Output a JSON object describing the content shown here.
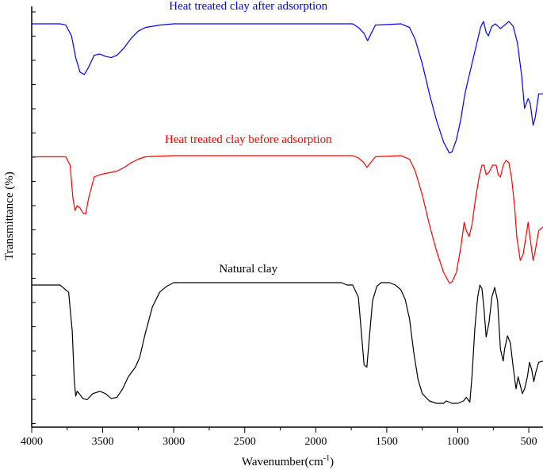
{
  "chart_data": {
    "type": "line",
    "xlabel": "Wavenumber(cm",
    "xlabel_sup": "-1",
    "xlabel_close": ")",
    "ylabel": "Transmittance (%)",
    "xlim": [
      4000,
      400
    ],
    "x_reversed": true,
    "x_ticks": [
      4000,
      3500,
      3000,
      2500,
      2000,
      1500,
      1000,
      500
    ],
    "y_tick_labels": false,
    "grid": false,
    "series": [
      {
        "name": "Heat treated clay after adsorption",
        "color": "#0000ff",
        "points": [
          [
            4000,
            0.02
          ],
          [
            3800,
            0.02
          ],
          [
            3760,
            0.03
          ],
          [
            3720,
            0.12
          ],
          [
            3690,
            0.3
          ],
          [
            3660,
            0.42
          ],
          [
            3630,
            0.44
          ],
          [
            3600,
            0.38
          ],
          [
            3560,
            0.28
          ],
          [
            3520,
            0.27
          ],
          [
            3480,
            0.29
          ],
          [
            3440,
            0.3
          ],
          [
            3400,
            0.28
          ],
          [
            3350,
            0.22
          ],
          [
            3300,
            0.14
          ],
          [
            3250,
            0.08
          ],
          [
            3200,
            0.05
          ],
          [
            3100,
            0.03
          ],
          [
            3000,
            0.02
          ],
          [
            2500,
            0.02
          ],
          [
            2000,
            0.02
          ],
          [
            1740,
            0.02
          ],
          [
            1700,
            0.05
          ],
          [
            1660,
            0.1
          ],
          [
            1635,
            0.16
          ],
          [
            1610,
            0.1
          ],
          [
            1580,
            0.03
          ],
          [
            1400,
            0.02
          ],
          [
            1340,
            0.05
          ],
          [
            1300,
            0.15
          ],
          [
            1250,
            0.35
          ],
          [
            1200,
            0.6
          ],
          [
            1150,
            0.82
          ],
          [
            1100,
            1.0
          ],
          [
            1060,
            1.09
          ],
          [
            1040,
            1.08
          ],
          [
            1010,
            0.98
          ],
          [
            980,
            0.82
          ],
          [
            950,
            0.6
          ],
          [
            930,
            0.5
          ],
          [
            900,
            0.35
          ],
          [
            870,
            0.2
          ],
          [
            840,
            0.05
          ],
          [
            820,
            0.0
          ],
          [
            800,
            0.09
          ],
          [
            785,
            0.12
          ],
          [
            760,
            0.04
          ],
          [
            735,
            0.02
          ],
          [
            700,
            0.06
          ],
          [
            670,
            0.03
          ],
          [
            640,
            0.0
          ],
          [
            610,
            0.04
          ],
          [
            580,
            0.18
          ],
          [
            550,
            0.45
          ],
          [
            530,
            0.72
          ],
          [
            505,
            0.64
          ],
          [
            490,
            0.68
          ],
          [
            470,
            0.86
          ],
          [
            455,
            0.8
          ],
          [
            430,
            0.6
          ],
          [
            400,
            0.6
          ]
        ]
      },
      {
        "name": "Heat treated clay before adsorption",
        "color": "#ff0000",
        "points": [
          [
            4000,
            0.03
          ],
          [
            3760,
            0.03
          ],
          [
            3730,
            0.1
          ],
          [
            3710,
            0.38
          ],
          [
            3695,
            0.48
          ],
          [
            3680,
            0.44
          ],
          [
            3660,
            0.46
          ],
          [
            3640,
            0.5
          ],
          [
            3620,
            0.51
          ],
          [
            3600,
            0.38
          ],
          [
            3560,
            0.2
          ],
          [
            3520,
            0.18
          ],
          [
            3480,
            0.17
          ],
          [
            3440,
            0.16
          ],
          [
            3400,
            0.15
          ],
          [
            3350,
            0.12
          ],
          [
            3300,
            0.08
          ],
          [
            3250,
            0.05
          ],
          [
            3200,
            0.03
          ],
          [
            3000,
            0.02
          ],
          [
            2500,
            0.02
          ],
          [
            2000,
            0.02
          ],
          [
            1740,
            0.02
          ],
          [
            1700,
            0.04
          ],
          [
            1660,
            0.08
          ],
          [
            1640,
            0.12
          ],
          [
            1615,
            0.08
          ],
          [
            1580,
            0.03
          ],
          [
            1400,
            0.02
          ],
          [
            1340,
            0.05
          ],
          [
            1300,
            0.15
          ],
          [
            1250,
            0.35
          ],
          [
            1200,
            0.6
          ],
          [
            1150,
            0.82
          ],
          [
            1100,
            1.0
          ],
          [
            1060,
            1.09
          ],
          [
            1040,
            1.08
          ],
          [
            1010,
            1.0
          ],
          [
            980,
            0.8
          ],
          [
            955,
            0.58
          ],
          [
            940,
            0.65
          ],
          [
            920,
            0.7
          ],
          [
            900,
            0.6
          ],
          [
            875,
            0.38
          ],
          [
            850,
            0.2
          ],
          [
            830,
            0.1
          ],
          [
            815,
            0.1
          ],
          [
            800,
            0.18
          ],
          [
            780,
            0.16
          ],
          [
            755,
            0.1
          ],
          [
            730,
            0.1
          ],
          [
            715,
            0.18
          ],
          [
            700,
            0.2
          ],
          [
            680,
            0.1
          ],
          [
            660,
            0.06
          ],
          [
            640,
            0.08
          ],
          [
            620,
            0.22
          ],
          [
            600,
            0.45
          ],
          [
            585,
            0.7
          ],
          [
            560,
            0.9
          ],
          [
            540,
            0.85
          ],
          [
            520,
            0.7
          ],
          [
            505,
            0.58
          ],
          [
            490,
            0.72
          ],
          [
            470,
            0.9
          ],
          [
            455,
            0.82
          ],
          [
            430,
            0.65
          ],
          [
            400,
            0.62
          ]
        ]
      },
      {
        "name": "Natural clay",
        "color": "#000000",
        "points": [
          [
            4000,
            0.02
          ],
          [
            3800,
            0.02
          ],
          [
            3740,
            0.08
          ],
          [
            3715,
            0.4
          ],
          [
            3700,
            0.82
          ],
          [
            3690,
            0.94
          ],
          [
            3680,
            0.9
          ],
          [
            3665,
            0.92
          ],
          [
            3640,
            0.96
          ],
          [
            3610,
            0.97
          ],
          [
            3570,
            0.92
          ],
          [
            3520,
            0.9
          ],
          [
            3480,
            0.92
          ],
          [
            3440,
            0.96
          ],
          [
            3400,
            0.95
          ],
          [
            3360,
            0.88
          ],
          [
            3320,
            0.78
          ],
          [
            3270,
            0.7
          ],
          [
            3240,
            0.62
          ],
          [
            3200,
            0.42
          ],
          [
            3150,
            0.2
          ],
          [
            3100,
            0.08
          ],
          [
            3050,
            0.03
          ],
          [
            3000,
            0.0
          ],
          [
            2800,
            0.0
          ],
          [
            2500,
            0.0
          ],
          [
            2000,
            0.0
          ],
          [
            1820,
            0.0
          ],
          [
            1780,
            0.02
          ],
          [
            1740,
            0.02
          ],
          [
            1700,
            0.12
          ],
          [
            1680,
            0.4
          ],
          [
            1660,
            0.68
          ],
          [
            1640,
            0.7
          ],
          [
            1620,
            0.42
          ],
          [
            1600,
            0.15
          ],
          [
            1570,
            0.03
          ],
          [
            1540,
            0.0
          ],
          [
            1480,
            0.0
          ],
          [
            1440,
            0.02
          ],
          [
            1400,
            0.06
          ],
          [
            1370,
            0.14
          ],
          [
            1340,
            0.3
          ],
          [
            1310,
            0.58
          ],
          [
            1280,
            0.8
          ],
          [
            1250,
            0.92
          ],
          [
            1200,
            0.98
          ],
          [
            1150,
            1.0
          ],
          [
            1100,
            1.0
          ],
          [
            1080,
            0.98
          ],
          [
            1060,
            0.99
          ],
          [
            1040,
            1.0
          ],
          [
            1000,
            1.0
          ],
          [
            960,
            0.98
          ],
          [
            940,
            0.95
          ],
          [
            915,
            0.99
          ],
          [
            900,
            0.78
          ],
          [
            880,
            0.38
          ],
          [
            860,
            0.12
          ],
          [
            845,
            0.02
          ],
          [
            830,
            0.05
          ],
          [
            815,
            0.22
          ],
          [
            800,
            0.45
          ],
          [
            780,
            0.33
          ],
          [
            760,
            0.12
          ],
          [
            740,
            0.04
          ],
          [
            720,
            0.15
          ],
          [
            700,
            0.55
          ],
          [
            680,
            0.65
          ],
          [
            670,
            0.55
          ],
          [
            650,
            0.44
          ],
          [
            630,
            0.5
          ],
          [
            610,
            0.7
          ],
          [
            590,
            0.88
          ],
          [
            575,
            0.78
          ],
          [
            560,
            0.85
          ],
          [
            545,
            0.92
          ],
          [
            530,
            0.88
          ],
          [
            510,
            0.78
          ],
          [
            495,
            0.66
          ],
          [
            480,
            0.72
          ],
          [
            465,
            0.82
          ],
          [
            450,
            0.74
          ],
          [
            430,
            0.66
          ],
          [
            400,
            0.65
          ]
        ]
      }
    ]
  }
}
